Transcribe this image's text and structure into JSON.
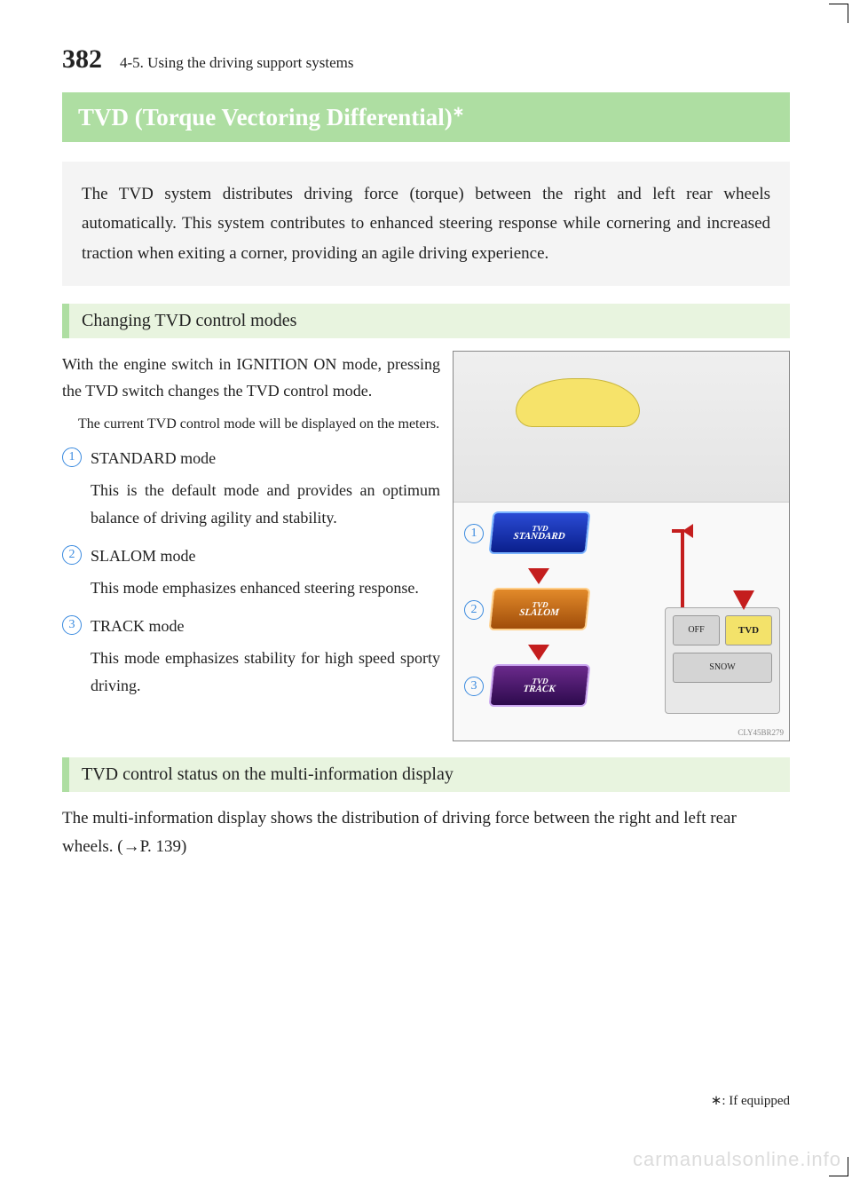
{
  "page_number": "382",
  "chapter": "4-5. Using the driving support systems",
  "title": "TVD (Torque Vectoring Differential)",
  "title_superscript": "∗",
  "intro": "The TVD system distributes driving force (torque) between the right and left rear wheels automatically. This system contributes to enhanced steering response while cornering and increased traction when exiting a corner, providing an agile driving experience.",
  "section1": {
    "heading": "Changing TVD control modes",
    "para1": "With the engine switch in IGNITION ON mode, pressing the TVD switch changes the TVD control mode.",
    "note": "The current TVD control mode will be displayed on the meters.",
    "modes": [
      {
        "num": "1",
        "name": "STANDARD mode",
        "desc": "This is the default mode and provides an optimum balance of driving agility and stability."
      },
      {
        "num": "2",
        "name": "SLALOM mode",
        "desc": "This mode emphasizes enhanced steering response."
      },
      {
        "num": "3",
        "name": "TRACK mode",
        "desc": "This mode emphasizes stability for high speed sporty driving."
      }
    ]
  },
  "figure": {
    "badges": [
      {
        "num": "1",
        "tvd": "TVD",
        "label": "STANDARD",
        "cls": "b-standard"
      },
      {
        "num": "2",
        "tvd": "TVD",
        "label": "SLALOM",
        "cls": "b-slalom"
      },
      {
        "num": "3",
        "tvd": "TVD",
        "label": "TRACK",
        "cls": "b-track"
      }
    ],
    "switch": {
      "off": "OFF",
      "tvd": "TVD",
      "snow": "SNOW"
    },
    "code": "CLY45BR279"
  },
  "section2": {
    "heading": "TVD control status on the multi-information display",
    "body_pre": "The multi-information display shows the distribution of driving force between the right and left rear wheels. (",
    "body_post": "P. 139)"
  },
  "footnote": "∗: If equipped",
  "watermark": "carmanualsonline.info"
}
